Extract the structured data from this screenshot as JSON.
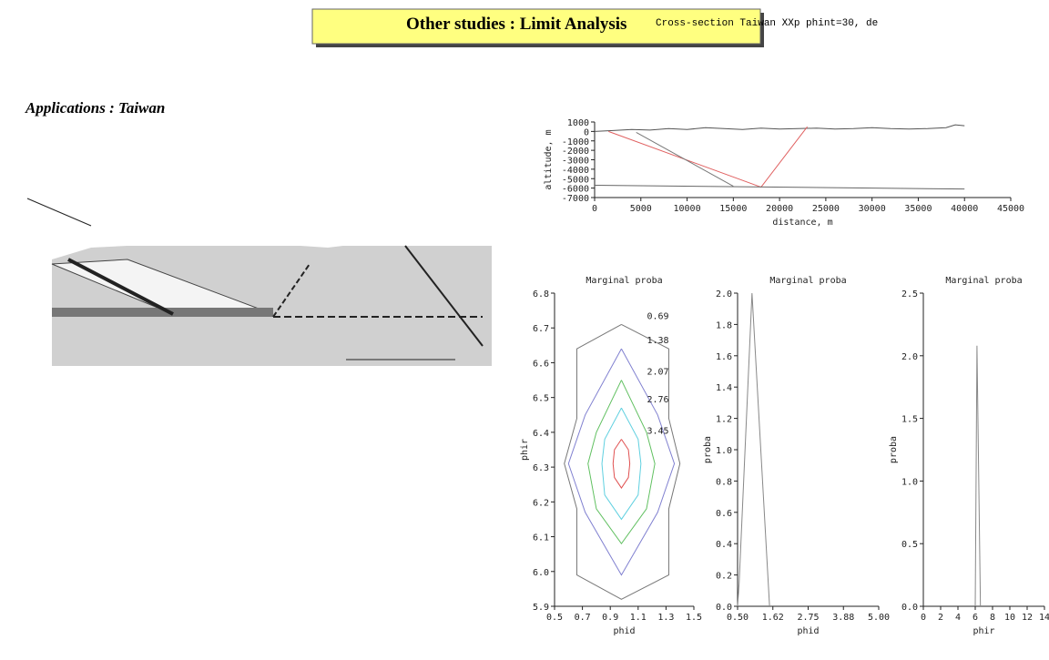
{
  "header": {
    "title": "Other studies : Limit Analysis",
    "subtitle": "Cross-section Taiwan XXp phint=30, de"
  },
  "section": {
    "heading": "Applications : Taiwan"
  },
  "chart_data": [
    {
      "type": "line",
      "xlabel": "distance, m",
      "ylabel": "altitude, m",
      "xlim": [
        0,
        45000
      ],
      "xticks": [
        0,
        5000,
        10000,
        15000,
        20000,
        25000,
        30000,
        35000,
        40000,
        45000
      ],
      "ylim": [
        -7000,
        1000
      ],
      "yticks": [
        -7000,
        -6000,
        -5000,
        -4000,
        -3000,
        -2000,
        -1000,
        0,
        1000
      ],
      "series": [
        {
          "color": "#555555",
          "x": [
            0,
            2000,
            4000,
            6000,
            8000,
            10000,
            12000,
            14000,
            16000,
            18000,
            20000,
            22000,
            24000,
            26000,
            28000,
            30000,
            32000,
            34000,
            36000,
            38000,
            39000,
            40000
          ],
          "values": [
            0,
            100,
            200,
            150,
            300,
            200,
            400,
            300,
            200,
            350,
            250,
            300,
            350,
            250,
            300,
            400,
            300,
            250,
            300,
            400,
            700,
            600
          ]
        },
        {
          "color": "#e06060",
          "x": [
            1500,
            18000,
            23000
          ],
          "values": [
            0,
            -5900,
            500
          ]
        },
        {
          "color": "#777777",
          "x": [
            4500,
            15000
          ],
          "values": [
            -100,
            -5800
          ]
        },
        {
          "color": "#666666",
          "x": [
            0,
            40000
          ],
          "values": [
            -5700,
            -6100
          ]
        }
      ]
    },
    {
      "type": "contour",
      "title": "Marginal proba",
      "xlabel": "phid",
      "ylabel": "phir",
      "xlim": [
        0.5,
        1.5
      ],
      "xticks": [
        0.5,
        0.7,
        0.9,
        1.1,
        1.3,
        1.5
      ],
      "ylim": [
        5.9,
        6.8
      ],
      "yticks": [
        5.9,
        {
          "value": 6,
          "label": "6.0"
        },
        6.1,
        6.2,
        6.3,
        6.4,
        6.5,
        6.6,
        6.7,
        6.8
      ],
      "series": [
        {
          "name": "0.69",
          "color": "#777777",
          "x": [
            0.98,
            1.32,
            1.32,
            1.4,
            1.32,
            1.32,
            0.98,
            0.66,
            0.66,
            0.57,
            0.66,
            0.66,
            0.98
          ],
          "values": [
            6.71,
            6.64,
            6.44,
            6.31,
            6.18,
            5.99,
            5.92,
            5.99,
            6.18,
            6.31,
            6.44,
            6.64,
            6.71
          ]
        },
        {
          "name": "1.38",
          "color": "#8080d0",
          "x": [
            0.98,
            1.24,
            1.36,
            1.24,
            0.98,
            0.72,
            0.6,
            0.72,
            0.98
          ],
          "values": [
            6.64,
            6.45,
            6.31,
            6.17,
            5.99,
            6.17,
            6.31,
            6.45,
            6.64
          ]
        },
        {
          "name": "2.07",
          "color": "#60c060",
          "x": [
            0.98,
            1.16,
            1.22,
            1.16,
            0.98,
            0.8,
            0.74,
            0.8,
            0.98
          ],
          "values": [
            6.55,
            6.4,
            6.31,
            6.18,
            6.08,
            6.18,
            6.31,
            6.4,
            6.55
          ]
        },
        {
          "name": "2.76",
          "color": "#60d0e0",
          "x": [
            0.98,
            1.1,
            1.12,
            1.1,
            0.98,
            0.86,
            0.84,
            0.86,
            0.98
          ],
          "values": [
            6.47,
            6.38,
            6.31,
            6.22,
            6.15,
            6.22,
            6.31,
            6.38,
            6.47
          ]
        },
        {
          "name": "3.45",
          "color": "#e05050",
          "x": [
            0.98,
            1.03,
            1.04,
            1.03,
            0.98,
            0.93,
            0.92,
            0.93,
            0.98
          ],
          "values": [
            6.38,
            6.35,
            6.31,
            6.27,
            6.24,
            6.27,
            6.31,
            6.35,
            6.38
          ]
        }
      ]
    },
    {
      "type": "line",
      "title": "Marginal proba",
      "xlabel": "phid",
      "ylabel": "proba",
      "xlim": [
        0.5,
        5.0
      ],
      "xticks": [
        {
          "value": 0.5,
          "label": "0.50"
        },
        {
          "value": 1.625,
          "label": "1.62"
        },
        2.75,
        {
          "value": 3.875,
          "label": "3.88"
        },
        {
          "value": 5,
          "label": "5.00"
        }
      ],
      "ylim": [
        0,
        2.0
      ],
      "yticks": [
        {
          "value": 0,
          "label": "0.0"
        },
        0.2,
        0.4,
        0.6,
        0.8,
        {
          "value": 1,
          "label": "1.0"
        },
        1.2,
        1.4,
        1.6,
        1.8,
        {
          "value": 2,
          "label": "2.0"
        }
      ],
      "series": [
        {
          "color": "#888888",
          "x": [
            0.5,
            0.55,
            0.96,
            1.52
          ],
          "values": [
            0,
            0.15,
            2.0,
            0
          ]
        }
      ]
    },
    {
      "type": "line",
      "title": "Marginal proba",
      "xlabel": "phir",
      "ylabel": "proba",
      "xlim": [
        0,
        14
      ],
      "xticks": [
        0,
        2,
        4,
        6,
        8,
        10,
        12,
        14
      ],
      "ylim": [
        0,
        2.5
      ],
      "yticks": [
        {
          "value": 0,
          "label": "0.0"
        },
        0.5,
        {
          "value": 1,
          "label": "1.0"
        },
        1.5,
        {
          "value": 2,
          "label": "2.0"
        },
        2.5
      ],
      "series": [
        {
          "color": "#888888",
          "x": [
            6.0,
            6.2,
            6.6
          ],
          "values": [
            0,
            2.08,
            0
          ]
        }
      ]
    }
  ]
}
